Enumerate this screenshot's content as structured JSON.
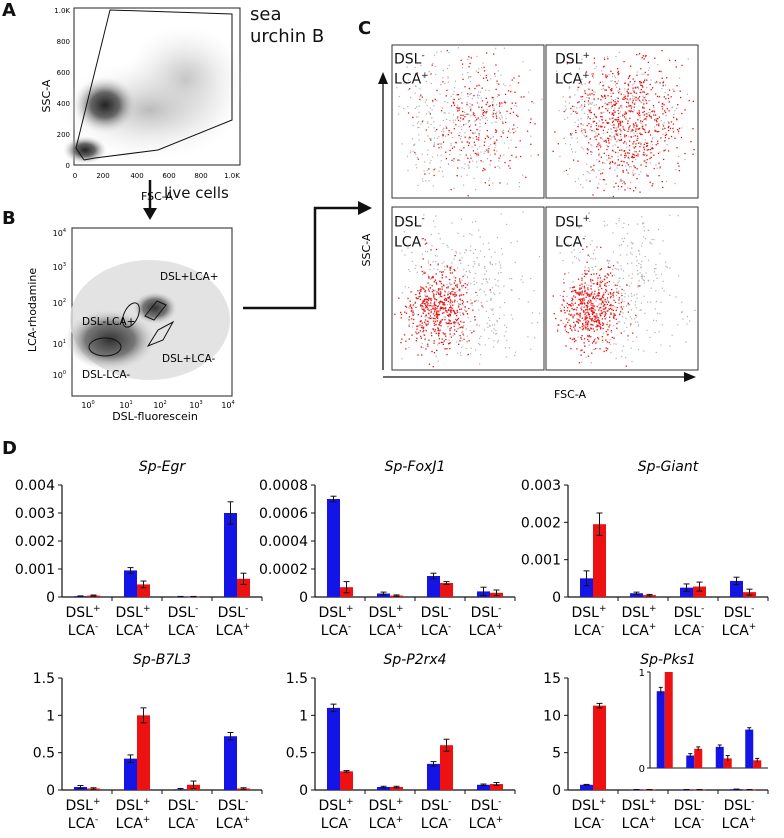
{
  "panel_labels": {
    "a": "A",
    "b": "B",
    "c": "C",
    "d": "D"
  },
  "panel_a": {
    "species": "sea urchin B",
    "xlabel": "FSC-A",
    "ylabel": "SSC-A",
    "x_ticks": [
      "0",
      "200",
      "400",
      "600",
      "800",
      "1.0K"
    ],
    "y_ticks": [
      "0",
      "200",
      "400",
      "600",
      "800",
      "1.0K"
    ]
  },
  "arrow_label": "live cells",
  "panel_b": {
    "xlabel": "DSL-fluorescein",
    "ylabel": "LCA-rhodamine",
    "gates": {
      "dsl_minus_lca_plus": "DSL-LCA+",
      "dsl_plus_lca_plus": "DSL+LCA+",
      "dsl_plus_lca_minus": "DSL+LCA-",
      "dsl_minus_lca_minus": "DSL-LCA-"
    }
  },
  "panel_c": {
    "xlabel": "FSC-A",
    "ylabel": "SSC-A",
    "quadrants": [
      {
        "dsl": "DSL",
        "dsl_sign": "-",
        "lca": "LCA",
        "lca_sign": "+"
      },
      {
        "dsl": "DSL",
        "dsl_sign": "+",
        "lca": "LCA",
        "lca_sign": "+"
      },
      {
        "dsl": "DSL",
        "dsl_sign": "-",
        "lca": "LCA",
        "lca_sign": "-"
      },
      {
        "dsl": "DSL",
        "dsl_sign": "+",
        "lca": "LCA",
        "lca_sign": "-"
      }
    ]
  },
  "colors": {
    "blue": "#1414e6",
    "red": "#ee1111",
    "gray": "#b0b0b0"
  },
  "chart_data": [
    {
      "type": "bar",
      "title": "Sp-Egr",
      "categories": [
        [
          "DSL+",
          "LCA-"
        ],
        [
          "DSL+",
          "LCA+"
        ],
        [
          "DSL-",
          "LCA-"
        ],
        [
          "DSL-",
          "LCA+"
        ]
      ],
      "series": [
        {
          "color": "blue",
          "values": [
            3e-05,
            0.00095,
            1e-05,
            0.003
          ],
          "errors": [
            1e-05,
            0.0001,
            1e-05,
            0.0004
          ]
        },
        {
          "color": "red",
          "values": [
            5e-05,
            0.00045,
            1e-05,
            0.00065
          ],
          "errors": [
            2e-05,
            0.00012,
            1e-05,
            0.0002
          ]
        }
      ],
      "ylim": [
        0,
        0.004
      ],
      "y_ticks": [
        "0",
        "0.001",
        "0.002",
        "0.003",
        "0.004"
      ],
      "y_tick_values": [
        0,
        0.001,
        0.002,
        0.003,
        0.004
      ]
    },
    {
      "type": "bar",
      "title": "Sp-FoxJ1",
      "categories": [
        [
          "DSL+",
          "LCA-"
        ],
        [
          "DSL+",
          "LCA+"
        ],
        [
          "DSL-",
          "LCA-"
        ],
        [
          "DSL-",
          "LCA+"
        ]
      ],
      "series": [
        {
          "color": "blue",
          "values": [
            0.0007,
            2.5e-05,
            0.00015,
            4e-05
          ],
          "errors": [
            2e-05,
            1e-05,
            2e-05,
            3e-05
          ]
        },
        {
          "color": "red",
          "values": [
            7e-05,
            1e-05,
            0.0001,
            3e-05
          ],
          "errors": [
            4e-05,
            5e-06,
            1e-05,
            2e-05
          ]
        }
      ],
      "ylim": [
        0,
        0.0008
      ],
      "y_ticks": [
        "0",
        "0.0002",
        "0.0004",
        "0.0006",
        "0.0008"
      ],
      "y_tick_values": [
        0,
        0.0002,
        0.0004,
        0.0006,
        0.0008
      ]
    },
    {
      "type": "bar",
      "title": "Sp-Giant",
      "categories": [
        [
          "DSL+",
          "LCA-"
        ],
        [
          "DSL+",
          "LCA+"
        ],
        [
          "DSL-",
          "LCA-"
        ],
        [
          "DSL-",
          "LCA+"
        ]
      ],
      "series": [
        {
          "color": "blue",
          "values": [
            0.0005,
            0.0001,
            0.00025,
            0.00043
          ],
          "errors": [
            0.0002,
            3e-05,
            0.0001,
            0.0001
          ]
        },
        {
          "color": "red",
          "values": [
            0.00195,
            5e-05,
            0.00028,
            0.00013
          ],
          "errors": [
            0.0003,
            2e-05,
            0.00012,
            8e-05
          ]
        }
      ],
      "ylim": [
        0,
        0.003
      ],
      "y_ticks": [
        "0",
        "0.001",
        "0.002",
        "0.003"
      ],
      "y_tick_values": [
        0,
        0.001,
        0.002,
        0.003
      ]
    },
    {
      "type": "bar",
      "title": "Sp-B7L3",
      "categories": [
        [
          "DSL+",
          "LCA-"
        ],
        [
          "DSL+",
          "LCA+"
        ],
        [
          "DSL-",
          "LCA-"
        ],
        [
          "DSL-",
          "LCA+"
        ]
      ],
      "series": [
        {
          "color": "blue",
          "values": [
            0.04,
            0.42,
            0.01,
            0.72
          ],
          "errors": [
            0.02,
            0.05,
            0.01,
            0.05
          ]
        },
        {
          "color": "red",
          "values": [
            0.02,
            1.0,
            0.07,
            0.02
          ],
          "errors": [
            0.01,
            0.1,
            0.05,
            0.01
          ]
        }
      ],
      "ylim": [
        0,
        1.5
      ],
      "y_ticks": [
        "0",
        "0.5",
        "1",
        "1.5"
      ],
      "y_tick_values": [
        0,
        0.5,
        1,
        1.5
      ]
    },
    {
      "type": "bar",
      "title": "Sp-P2rx4",
      "categories": [
        [
          "DSL+",
          "LCA-"
        ],
        [
          "DSL+",
          "LCA+"
        ],
        [
          "DSL-",
          "LCA-"
        ],
        [
          "DSL-",
          "LCA+"
        ]
      ],
      "series": [
        {
          "color": "blue",
          "values": [
            1.1,
            0.04,
            0.35,
            0.07
          ],
          "errors": [
            0.05,
            0.01,
            0.03,
            0.01
          ]
        },
        {
          "color": "red",
          "values": [
            0.25,
            0.04,
            0.6,
            0.08
          ],
          "errors": [
            0.01,
            0.01,
            0.08,
            0.02
          ]
        }
      ],
      "ylim": [
        0,
        1.5
      ],
      "y_ticks": [
        "0",
        "0.5",
        "1",
        "1.5"
      ],
      "y_tick_values": [
        0,
        0.5,
        1,
        1.5
      ]
    },
    {
      "type": "bar",
      "title": "Sp-Pks1",
      "categories": [
        [
          "DSL+",
          "LCA-"
        ],
        [
          "DSL+",
          "LCA+"
        ],
        [
          "DSL-",
          "LCA-"
        ],
        [
          "DSL-",
          "LCA+"
        ]
      ],
      "series": [
        {
          "color": "blue",
          "values": [
            0.7,
            0.05,
            0.05,
            0.1
          ],
          "errors": [
            0.05,
            0.01,
            0.01,
            0.02
          ]
        },
        {
          "color": "red",
          "values": [
            11.3,
            0.05,
            0.05,
            0.05
          ],
          "errors": [
            0.3,
            0.01,
            0.01,
            0.01
          ]
        }
      ],
      "ylim": [
        0,
        15
      ],
      "y_ticks": [
        "0",
        "5",
        "10",
        "15"
      ],
      "y_tick_values": [
        0,
        5,
        10,
        15
      ],
      "inset": {
        "series": [
          {
            "color": "blue",
            "values": [
              0.8,
              0.13,
              0.22,
              0.4
            ],
            "errors": [
              0.04,
              0.02,
              0.02,
              0.02
            ]
          },
          {
            "color": "red",
            "values": [
              1.0,
              0.2,
              0.1,
              0.08
            ],
            "errors": [
              0.0,
              0.02,
              0.03,
              0.02
            ]
          }
        ],
        "ylim": [
          0,
          1
        ],
        "y_ticks": [
          "0",
          "1"
        ],
        "y_tick_values": [
          0,
          1
        ]
      }
    }
  ]
}
